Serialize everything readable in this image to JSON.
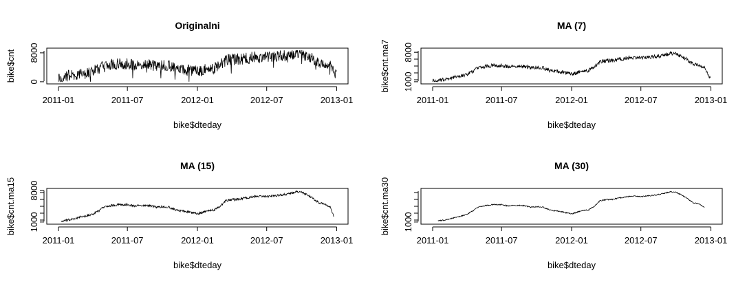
{
  "chart_data": [
    {
      "type": "line",
      "title": "Originalni",
      "xlabel": "bike$dteday",
      "ylabel": "bike$cnt",
      "x_ticks": [
        "2011-01",
        "2011-07",
        "2012-01",
        "2012-07",
        "2013-01"
      ],
      "y_ticks": [
        "0",
        "8000"
      ],
      "y_tick_values": [
        0,
        8000
      ],
      "xlim": [
        "2011-01-01",
        "2012-12-31"
      ],
      "ylim": [
        0,
        8714
      ],
      "smoothing_window": 1,
      "series": [
        {
          "values_by_date": [
            [
              "2011-01-01",
              985
            ],
            [
              "2011-01-15",
              1500
            ],
            [
              "2011-02-01",
              1700
            ],
            [
              "2011-02-15",
              1900
            ],
            [
              "2011-03-01",
              2100
            ],
            [
              "2011-03-15",
              2400
            ],
            [
              "2011-04-01",
              2800
            ],
            [
              "2011-04-15",
              3500
            ],
            [
              "2011-05-01",
              4300
            ],
            [
              "2011-05-15",
              4700
            ],
            [
              "2011-06-01",
              4900
            ],
            [
              "2011-06-15",
              5000
            ],
            [
              "2011-07-01",
              5000
            ],
            [
              "2011-07-15",
              4600
            ],
            [
              "2011-08-01",
              4700
            ],
            [
              "2011-08-15",
              4800
            ],
            [
              "2011-09-01",
              4700
            ],
            [
              "2011-09-15",
              4300
            ],
            [
              "2011-10-01",
              4500
            ],
            [
              "2011-10-15",
              4600
            ],
            [
              "2011-11-01",
              3800
            ],
            [
              "2011-11-15",
              3400
            ],
            [
              "2011-12-01",
              3300
            ],
            [
              "2011-12-15",
              3000
            ],
            [
              "2012-01-01",
              2900
            ],
            [
              "2012-01-15",
              3300
            ],
            [
              "2012-02-01",
              3700
            ],
            [
              "2012-02-15",
              3800
            ],
            [
              "2012-03-01",
              4700
            ],
            [
              "2012-03-15",
              5900
            ],
            [
              "2012-04-01",
              6200
            ],
            [
              "2012-04-15",
              6100
            ],
            [
              "2012-05-01",
              6400
            ],
            [
              "2012-05-15",
              6600
            ],
            [
              "2012-06-01",
              6800
            ],
            [
              "2012-06-15",
              6900
            ],
            [
              "2012-07-01",
              6700
            ],
            [
              "2012-07-15",
              6900
            ],
            [
              "2012-08-01",
              7000
            ],
            [
              "2012-08-15",
              7200
            ],
            [
              "2012-09-01",
              7500
            ],
            [
              "2012-09-15",
              7800
            ],
            [
              "2012-10-01",
              7700
            ],
            [
              "2012-10-15",
              7200
            ],
            [
              "2012-11-01",
              6300
            ],
            [
              "2012-11-15",
              5400
            ],
            [
              "2012-12-01",
              5200
            ],
            [
              "2012-12-15",
              4300
            ],
            [
              "2012-12-31",
              2200
            ]
          ]
        }
      ]
    },
    {
      "type": "line",
      "title": "MA (7)",
      "xlabel": "bike$dteday",
      "ylabel": "bike$cnt.ma7",
      "x_ticks": [
        "2011-01",
        "2011-07",
        "2012-01",
        "2012-07",
        "2013-01"
      ],
      "y_ticks": [
        "1000",
        "8000"
      ],
      "y_tick_values": [
        1000,
        8000
      ],
      "xlim": [
        "2011-01-01",
        "2012-12-31"
      ],
      "ylim": [
        1000,
        8500
      ],
      "smoothing_window": 7,
      "series": [
        {
          "values_by_date": [
            [
              "2011-01-01",
              1300
            ],
            [
              "2011-01-15",
              1400
            ],
            [
              "2011-02-01",
              1500
            ],
            [
              "2011-02-15",
              1800
            ],
            [
              "2011-03-01",
              2100
            ],
            [
              "2011-03-15",
              2400
            ],
            [
              "2011-04-01",
              2700
            ],
            [
              "2011-04-15",
              3400
            ],
            [
              "2011-05-01",
              4300
            ],
            [
              "2011-05-15",
              4600
            ],
            [
              "2011-06-01",
              4800
            ],
            [
              "2011-06-15",
              4900
            ],
            [
              "2011-07-01",
              4900
            ],
            [
              "2011-07-15",
              4600
            ],
            [
              "2011-08-01",
              4700
            ],
            [
              "2011-08-15",
              4700
            ],
            [
              "2011-09-01",
              4600
            ],
            [
              "2011-09-15",
              4300
            ],
            [
              "2011-10-01",
              4400
            ],
            [
              "2011-10-15",
              4400
            ],
            [
              "2011-11-01",
              3800
            ],
            [
              "2011-11-15",
              3500
            ],
            [
              "2011-12-01",
              3400
            ],
            [
              "2011-12-15",
              3100
            ],
            [
              "2012-01-01",
              2800
            ],
            [
              "2012-01-15",
              3200
            ],
            [
              "2012-02-01",
              3600
            ],
            [
              "2012-02-15",
              3700
            ],
            [
              "2012-03-01",
              4500
            ],
            [
              "2012-03-15",
              5700
            ],
            [
              "2012-04-01",
              6000
            ],
            [
              "2012-04-15",
              6000
            ],
            [
              "2012-05-01",
              6300
            ],
            [
              "2012-05-15",
              6500
            ],
            [
              "2012-06-01",
              6700
            ],
            [
              "2012-06-15",
              6800
            ],
            [
              "2012-07-01",
              6600
            ],
            [
              "2012-07-15",
              6800
            ],
            [
              "2012-08-01",
              6900
            ],
            [
              "2012-08-15",
              7100
            ],
            [
              "2012-09-01",
              7400
            ],
            [
              "2012-09-15",
              7700
            ],
            [
              "2012-10-01",
              7600
            ],
            [
              "2012-10-15",
              7100
            ],
            [
              "2012-11-01",
              6200
            ],
            [
              "2012-11-15",
              5300
            ],
            [
              "2012-12-01",
              5100
            ],
            [
              "2012-12-15",
              4200
            ],
            [
              "2012-12-31",
              1800
            ]
          ]
        }
      ]
    },
    {
      "type": "line",
      "title": "MA (15)",
      "xlabel": "bike$dteday",
      "ylabel": "bike$cnt.ma15",
      "x_ticks": [
        "2011-01",
        "2011-07",
        "2012-01",
        "2012-07",
        "2013-01"
      ],
      "y_ticks": [
        "1000",
        "8000"
      ],
      "y_tick_values": [
        1000,
        8000
      ],
      "xlim": [
        "2011-01-01",
        "2012-12-31"
      ],
      "ylim": [
        1000,
        8000
      ],
      "smoothing_window": 15,
      "series": [
        {
          "values_by_date": [
            [
              "2011-01-08",
              1300
            ],
            [
              "2011-01-15",
              1350
            ],
            [
              "2011-02-01",
              1500
            ],
            [
              "2011-02-15",
              1800
            ],
            [
              "2011-03-01",
              2100
            ],
            [
              "2011-03-15",
              2400
            ],
            [
              "2011-04-01",
              2700
            ],
            [
              "2011-04-15",
              3400
            ],
            [
              "2011-05-01",
              4300
            ],
            [
              "2011-05-15",
              4600
            ],
            [
              "2011-06-01",
              4800
            ],
            [
              "2011-06-15",
              4900
            ],
            [
              "2011-07-01",
              4900
            ],
            [
              "2011-07-15",
              4600
            ],
            [
              "2011-08-01",
              4700
            ],
            [
              "2011-08-15",
              4700
            ],
            [
              "2011-09-01",
              4600
            ],
            [
              "2011-09-15",
              4300
            ],
            [
              "2011-10-01",
              4400
            ],
            [
              "2011-10-15",
              4400
            ],
            [
              "2011-11-01",
              3800
            ],
            [
              "2011-11-15",
              3500
            ],
            [
              "2011-12-01",
              3400
            ],
            [
              "2011-12-15",
              3100
            ],
            [
              "2012-01-01",
              2800
            ],
            [
              "2012-01-15",
              3200
            ],
            [
              "2012-02-01",
              3600
            ],
            [
              "2012-02-15",
              3700
            ],
            [
              "2012-03-01",
              4500
            ],
            [
              "2012-03-15",
              5700
            ],
            [
              "2012-04-01",
              6000
            ],
            [
              "2012-04-15",
              6000
            ],
            [
              "2012-05-01",
              6300
            ],
            [
              "2012-05-15",
              6500
            ],
            [
              "2012-06-01",
              6700
            ],
            [
              "2012-06-15",
              6800
            ],
            [
              "2012-07-01",
              6600
            ],
            [
              "2012-07-15",
              6800
            ],
            [
              "2012-08-01",
              6900
            ],
            [
              "2012-08-15",
              7100
            ],
            [
              "2012-09-01",
              7400
            ],
            [
              "2012-09-15",
              7700
            ],
            [
              "2012-10-01",
              7600
            ],
            [
              "2012-10-15",
              7100
            ],
            [
              "2012-11-01",
              6200
            ],
            [
              "2012-11-15",
              5300
            ],
            [
              "2012-12-01",
              5100
            ],
            [
              "2012-12-15",
              4200
            ],
            [
              "2012-12-24",
              2300
            ]
          ]
        }
      ]
    },
    {
      "type": "line",
      "title": "MA (30)",
      "xlabel": "bike$dteday",
      "ylabel": "bike$cnt.ma30",
      "x_ticks": [
        "2011-01",
        "2011-07",
        "2012-01",
        "2012-07",
        "2013-01"
      ],
      "y_ticks": [
        "1000"
      ],
      "y_tick_values": [
        1000
      ],
      "xlim": [
        "2011-01-01",
        "2012-12-31"
      ],
      "ylim": [
        1000,
        8000
      ],
      "smoothing_window": 30,
      "series": [
        {
          "values_by_date": [
            [
              "2011-01-15",
              1300
            ],
            [
              "2011-02-01",
              1400
            ],
            [
              "2011-02-15",
              1700
            ],
            [
              "2011-03-01",
              2000
            ],
            [
              "2011-03-15",
              2300
            ],
            [
              "2011-04-01",
              2700
            ],
            [
              "2011-04-15",
              3400
            ],
            [
              "2011-05-01",
              4300
            ],
            [
              "2011-05-15",
              4600
            ],
            [
              "2011-06-01",
              4800
            ],
            [
              "2011-06-15",
              4900
            ],
            [
              "2011-07-01",
              4900
            ],
            [
              "2011-07-15",
              4600
            ],
            [
              "2011-08-01",
              4700
            ],
            [
              "2011-08-15",
              4700
            ],
            [
              "2011-09-01",
              4600
            ],
            [
              "2011-09-15",
              4300
            ],
            [
              "2011-10-01",
              4400
            ],
            [
              "2011-10-15",
              4400
            ],
            [
              "2011-11-01",
              3800
            ],
            [
              "2011-11-15",
              3500
            ],
            [
              "2011-12-01",
              3400
            ],
            [
              "2011-12-15",
              3100
            ],
            [
              "2012-01-01",
              2800
            ],
            [
              "2012-01-15",
              3200
            ],
            [
              "2012-02-01",
              3600
            ],
            [
              "2012-02-15",
              3700
            ],
            [
              "2012-03-01",
              4500
            ],
            [
              "2012-03-15",
              5700
            ],
            [
              "2012-04-01",
              6000
            ],
            [
              "2012-04-15",
              6000
            ],
            [
              "2012-05-01",
              6300
            ],
            [
              "2012-05-15",
              6500
            ],
            [
              "2012-06-01",
              6700
            ],
            [
              "2012-06-15",
              6800
            ],
            [
              "2012-07-01",
              6600
            ],
            [
              "2012-07-15",
              6800
            ],
            [
              "2012-08-01",
              6900
            ],
            [
              "2012-08-15",
              7100
            ],
            [
              "2012-09-01",
              7400
            ],
            [
              "2012-09-15",
              7700
            ],
            [
              "2012-10-01",
              7600
            ],
            [
              "2012-10-15",
              7100
            ],
            [
              "2012-11-01",
              6200
            ],
            [
              "2012-11-15",
              5300
            ],
            [
              "2012-12-01",
              5100
            ],
            [
              "2012-12-15",
              4200
            ]
          ]
        }
      ]
    }
  ]
}
